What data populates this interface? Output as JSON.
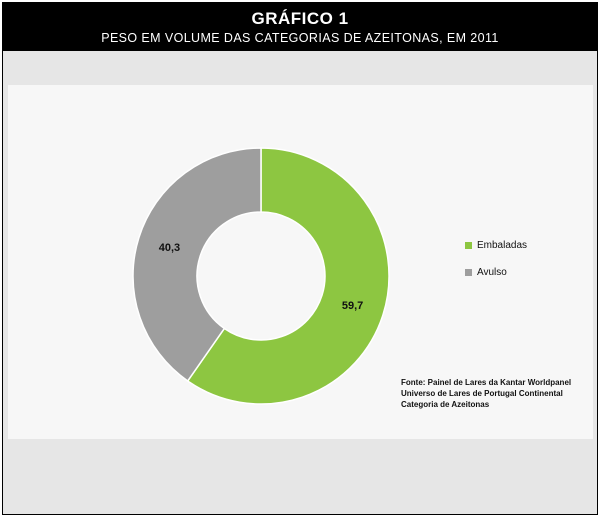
{
  "header": {
    "title": "GRÁFICO 1",
    "subtitle": "PESO EM VOLUME DAS CATEGORIAS DE AZEITONAS, EM 2011"
  },
  "colors": {
    "header_bg": "#000000",
    "panel_bg": "#e6e6e6",
    "plot_bg": "#f7f7f7",
    "embaladas": "#8dc641",
    "avulso": "#9e9e9e"
  },
  "chart_data": {
    "type": "pie",
    "style": "donut",
    "title": "GRÁFICO 1",
    "subtitle": "PESO EM VOLUME DAS CATEGORIAS DE AZEITONAS, EM 2011",
    "slices": [
      {
        "label": "Embaladas",
        "value": 59.7,
        "display": "59,7",
        "color": "#8dc641"
      },
      {
        "label": "Avulso",
        "value": 40.3,
        "display": "40,3",
        "color": "#9e9e9e"
      }
    ],
    "legend_position": "right"
  },
  "source": {
    "lines": [
      "Fonte: Painel de Lares da Kantar Worldpanel",
      "Universo de Lares de Portugal Continental",
      "Categoria de Azeitonas"
    ]
  }
}
